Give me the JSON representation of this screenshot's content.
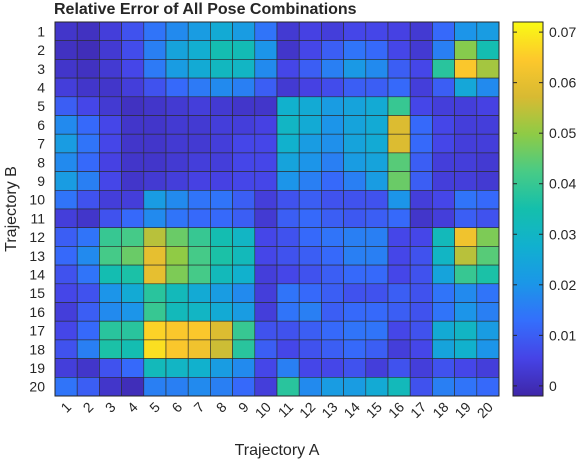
{
  "chart_data": {
    "type": "heatmap",
    "title": "Relative Error of All Pose Combinations",
    "xlabel": "Trajectory A",
    "ylabel": "Trajectory B",
    "x_categories": [
      "1",
      "2",
      "3",
      "4",
      "5",
      "6",
      "7",
      "8",
      "9",
      "10",
      "11",
      "12",
      "13",
      "14",
      "15",
      "16",
      "17",
      "18",
      "19",
      "20"
    ],
    "y_categories": [
      "1",
      "2",
      "3",
      "4",
      "5",
      "6",
      "7",
      "8",
      "9",
      "10",
      "11",
      "12",
      "13",
      "14",
      "15",
      "16",
      "17",
      "18",
      "19",
      "20"
    ],
    "colormap": "parula",
    "clim": [
      -0.002,
      0.072
    ],
    "colorbar_ticks": [
      0,
      0.01,
      0.02,
      0.03,
      0.04,
      0.05,
      0.06,
      0.07
    ],
    "colorbar_tick_labels": [
      "0",
      "0.01",
      "0.02",
      "0.03",
      "0.04",
      "0.05",
      "0.06",
      "0.07"
    ],
    "values": [
      [
        0.002,
        0.001,
        0.004,
        0.008,
        0.014,
        0.018,
        0.022,
        0.026,
        0.022,
        0.014,
        0.003,
        0.005,
        0.004,
        0.006,
        0.006,
        0.005,
        0.003,
        0.012,
        0.02,
        0.022
      ],
      [
        0.001,
        0.0,
        0.003,
        0.007,
        0.016,
        0.024,
        0.027,
        0.034,
        0.033,
        0.02,
        0.002,
        0.006,
        0.01,
        0.014,
        0.012,
        0.006,
        0.003,
        0.016,
        0.049,
        0.034
      ],
      [
        0.002,
        0.001,
        0.003,
        0.006,
        0.015,
        0.022,
        0.026,
        0.031,
        0.03,
        0.018,
        0.006,
        0.01,
        0.016,
        0.021,
        0.018,
        0.01,
        0.006,
        0.038,
        0.064,
        0.052
      ],
      [
        0.004,
        0.002,
        0.002,
        0.004,
        0.008,
        0.012,
        0.015,
        0.018,
        0.016,
        0.01,
        0.003,
        0.005,
        0.007,
        0.01,
        0.01,
        0.012,
        0.004,
        0.01,
        0.025,
        0.018
      ],
      [
        0.01,
        0.006,
        0.003,
        0.001,
        0.002,
        0.003,
        0.004,
        0.003,
        0.002,
        0.002,
        0.028,
        0.026,
        0.022,
        0.024,
        0.026,
        0.04,
        0.006,
        0.004,
        0.004,
        0.005
      ],
      [
        0.018,
        0.012,
        0.006,
        0.002,
        0.002,
        0.003,
        0.003,
        0.004,
        0.004,
        0.005,
        0.03,
        0.026,
        0.02,
        0.024,
        0.026,
        0.058,
        0.012,
        0.006,
        0.004,
        0.004
      ],
      [
        0.022,
        0.014,
        0.006,
        0.002,
        0.002,
        0.003,
        0.003,
        0.004,
        0.006,
        0.006,
        0.028,
        0.022,
        0.019,
        0.024,
        0.026,
        0.058,
        0.012,
        0.006,
        0.004,
        0.004
      ],
      [
        0.018,
        0.012,
        0.005,
        0.002,
        0.002,
        0.003,
        0.004,
        0.004,
        0.006,
        0.006,
        0.024,
        0.02,
        0.016,
        0.022,
        0.024,
        0.044,
        0.01,
        0.004,
        0.004,
        0.003
      ],
      [
        0.022,
        0.016,
        0.006,
        0.002,
        0.003,
        0.004,
        0.005,
        0.005,
        0.006,
        0.006,
        0.02,
        0.016,
        0.012,
        0.016,
        0.022,
        0.046,
        0.01,
        0.004,
        0.004,
        0.003
      ],
      [
        0.014,
        0.008,
        0.004,
        0.004,
        0.022,
        0.018,
        0.014,
        0.014,
        0.01,
        0.004,
        0.008,
        0.01,
        0.008,
        0.008,
        0.008,
        0.02,
        0.004,
        0.006,
        0.014,
        0.012
      ],
      [
        0.004,
        0.002,
        0.008,
        0.012,
        0.018,
        0.014,
        0.012,
        0.012,
        0.01,
        0.003,
        0.01,
        0.012,
        0.01,
        0.009,
        0.01,
        0.012,
        0.002,
        0.004,
        0.01,
        0.008
      ],
      [
        0.01,
        0.014,
        0.04,
        0.042,
        0.054,
        0.046,
        0.04,
        0.034,
        0.03,
        0.006,
        0.008,
        0.012,
        0.014,
        0.016,
        0.016,
        0.006,
        0.006,
        0.032,
        0.062,
        0.048
      ],
      [
        0.012,
        0.018,
        0.042,
        0.046,
        0.06,
        0.05,
        0.042,
        0.036,
        0.032,
        0.006,
        0.008,
        0.01,
        0.012,
        0.016,
        0.016,
        0.006,
        0.008,
        0.03,
        0.054,
        0.044
      ],
      [
        0.008,
        0.014,
        0.034,
        0.036,
        0.06,
        0.048,
        0.042,
        0.032,
        0.028,
        0.004,
        0.006,
        0.008,
        0.01,
        0.012,
        0.012,
        0.006,
        0.008,
        0.024,
        0.04,
        0.036
      ],
      [
        0.006,
        0.008,
        0.02,
        0.026,
        0.038,
        0.032,
        0.026,
        0.022,
        0.018,
        0.004,
        0.014,
        0.012,
        0.01,
        0.008,
        0.008,
        0.01,
        0.008,
        0.014,
        0.018,
        0.014
      ],
      [
        0.004,
        0.01,
        0.018,
        0.02,
        0.04,
        0.032,
        0.03,
        0.026,
        0.022,
        0.004,
        0.014,
        0.016,
        0.01,
        0.012,
        0.012,
        0.01,
        0.008,
        0.014,
        0.02,
        0.016
      ],
      [
        0.006,
        0.012,
        0.038,
        0.038,
        0.066,
        0.064,
        0.064,
        0.058,
        0.04,
        0.008,
        0.008,
        0.01,
        0.012,
        0.014,
        0.014,
        0.006,
        0.008,
        0.026,
        0.03,
        0.022
      ],
      [
        0.008,
        0.016,
        0.036,
        0.034,
        0.068,
        0.064,
        0.062,
        0.056,
        0.038,
        0.01,
        0.006,
        0.008,
        0.01,
        0.012,
        0.01,
        0.004,
        0.006,
        0.024,
        0.028,
        0.02
      ],
      [
        0.004,
        0.002,
        0.008,
        0.012,
        0.032,
        0.03,
        0.028,
        0.022,
        0.018,
        0.006,
        0.016,
        0.006,
        0.006,
        0.008,
        0.004,
        0.008,
        0.004,
        0.008,
        0.006,
        0.004
      ],
      [
        0.014,
        0.01,
        0.002,
        0.0,
        0.016,
        0.016,
        0.018,
        0.016,
        0.012,
        0.004,
        0.038,
        0.018,
        0.022,
        0.022,
        0.026,
        0.032,
        0.008,
        0.016,
        0.014,
        0.012
      ]
    ]
  }
}
